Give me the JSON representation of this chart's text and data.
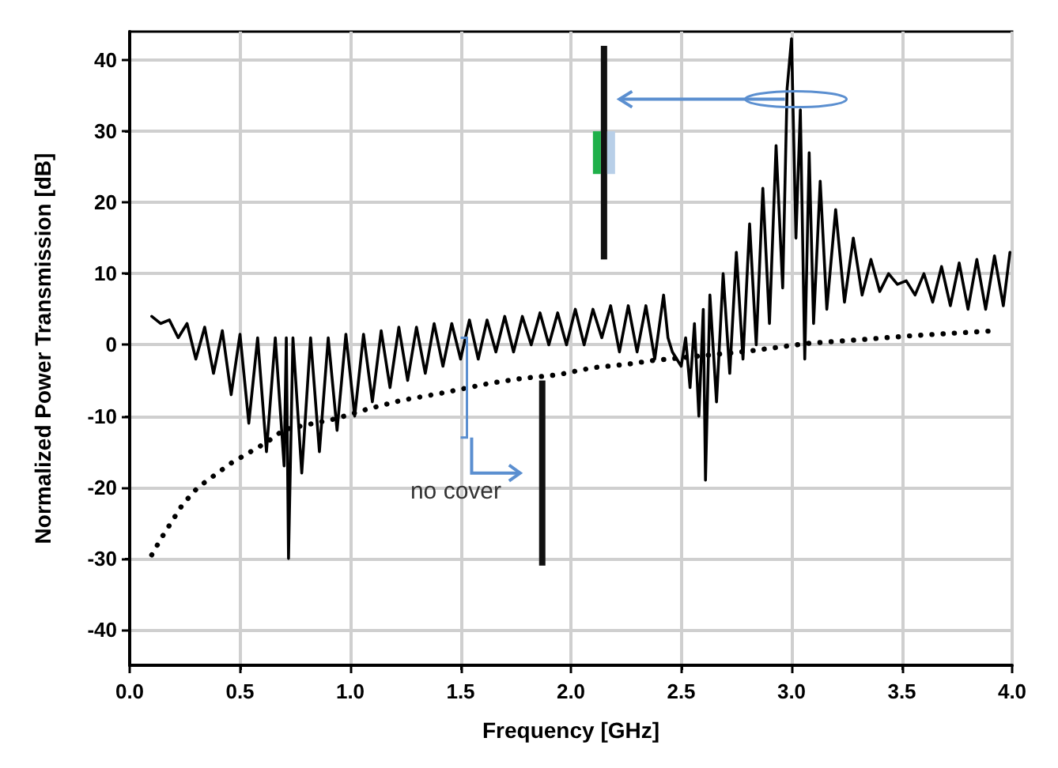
{
  "chart_data": {
    "type": "line",
    "xlabel": "Frequency [GHz]",
    "ylabel": "Normalized Power Transmission [dB]",
    "xlim": [
      0,
      4
    ],
    "xticks": [
      {
        "value": 0,
        "label": "0.0"
      },
      {
        "value": 0.5,
        "label": "0.5"
      },
      {
        "value": 1,
        "label": "1.0"
      },
      {
        "value": 1.5,
        "label": "1.5"
      },
      {
        "value": 2,
        "label": "2.0"
      },
      {
        "value": 2.5,
        "label": "2.5"
      },
      {
        "value": 3,
        "label": "3.0"
      },
      {
        "value": 3.5,
        "label": "3.5"
      },
      {
        "value": 4,
        "label": "4.0"
      }
    ],
    "ylim": [
      -45,
      44
    ],
    "yticks": [
      -40,
      -30,
      -20,
      -10,
      0,
      10,
      20,
      30,
      40
    ],
    "grid": true,
    "legend": false,
    "marker": "none",
    "series": [
      {
        "color": "#000000",
        "line_style": "solid",
        "x": [
          0.1,
          0.14,
          0.18,
          0.22,
          0.26,
          0.3,
          0.34,
          0.38,
          0.42,
          0.46,
          0.5,
          0.54,
          0.58,
          0.62,
          0.66,
          0.7,
          0.71,
          0.72,
          0.74,
          0.78,
          0.82,
          0.86,
          0.9,
          0.94,
          0.98,
          1.02,
          1.06,
          1.1,
          1.14,
          1.18,
          1.22,
          1.26,
          1.3,
          1.34,
          1.38,
          1.42,
          1.46,
          1.5,
          1.54,
          1.58,
          1.62,
          1.66,
          1.7,
          1.74,
          1.78,
          1.82,
          1.86,
          1.9,
          1.94,
          1.98,
          2.02,
          2.06,
          2.1,
          2.14,
          2.18,
          2.22,
          2.26,
          2.3,
          2.34,
          2.38,
          2.42,
          2.44,
          2.46,
          2.48,
          2.5,
          2.52,
          2.54,
          2.56,
          2.58,
          2.6,
          2.61,
          2.63,
          2.66,
          2.69,
          2.72,
          2.75,
          2.78,
          2.81,
          2.84,
          2.87,
          2.9,
          2.93,
          2.96,
          2.98,
          3.0,
          3.02,
          3.04,
          3.06,
          3.08,
          3.1,
          3.13,
          3.16,
          3.2,
          3.24,
          3.28,
          3.32,
          3.36,
          3.4,
          3.44,
          3.48,
          3.52,
          3.56,
          3.6,
          3.64,
          3.68,
          3.72,
          3.76,
          3.8,
          3.84,
          3.88,
          3.92,
          3.96,
          3.99
        ],
        "values": [
          4,
          3,
          3.5,
          1,
          3,
          -2,
          2.5,
          -4,
          2,
          -7,
          1.5,
          -11,
          1,
          -15,
          1,
          -17,
          1,
          -30,
          1,
          -18,
          1,
          -15,
          1,
          -12,
          1.5,
          -10,
          1.5,
          -8,
          2,
          -6,
          2.5,
          -5,
          2.5,
          -4,
          3,
          -3,
          3,
          -2,
          3.5,
          -2,
          3.5,
          -1,
          4,
          -1,
          4,
          0,
          4.5,
          0,
          4.5,
          0,
          5,
          0,
          5,
          1,
          5.5,
          -1,
          5.5,
          -1,
          5.5,
          -2,
          7,
          1,
          -1,
          -2,
          -3,
          1,
          -6,
          3,
          -10,
          5,
          -19,
          7,
          -8,
          10,
          -4,
          13,
          -2,
          17,
          0,
          22,
          3,
          28,
          8,
          36,
          43,
          15,
          33,
          -2,
          27,
          3,
          23,
          5,
          19,
          6,
          15,
          7,
          12,
          7.5,
          10,
          8.5,
          9,
          7,
          10,
          6,
          11,
          5.5,
          11.5,
          5,
          12,
          5,
          12.5,
          5.5,
          13
        ]
      },
      {
        "name": "no cover",
        "color": "#000000",
        "line_style": "dotted",
        "x": [
          0.1,
          0.14,
          0.24,
          0.31,
          0.46,
          0.62,
          0.7,
          0.93,
          1.08,
          1.23,
          1.41,
          1.63,
          1.78,
          1.94,
          2.1,
          2.26,
          2.37,
          2.8,
          3.07,
          3.3,
          3.55,
          3.93
        ],
        "values": [
          -29.5,
          -27.3,
          -22.4,
          -20,
          -16.6,
          -13.7,
          -11.9,
          -10.4,
          -9,
          -7.8,
          -6.8,
          -5.4,
          -4.7,
          -4.2,
          -3.2,
          -2.7,
          -2.2,
          -0.9,
          0.2,
          0.7,
          1.3,
          2
        ]
      }
    ]
  }
}
